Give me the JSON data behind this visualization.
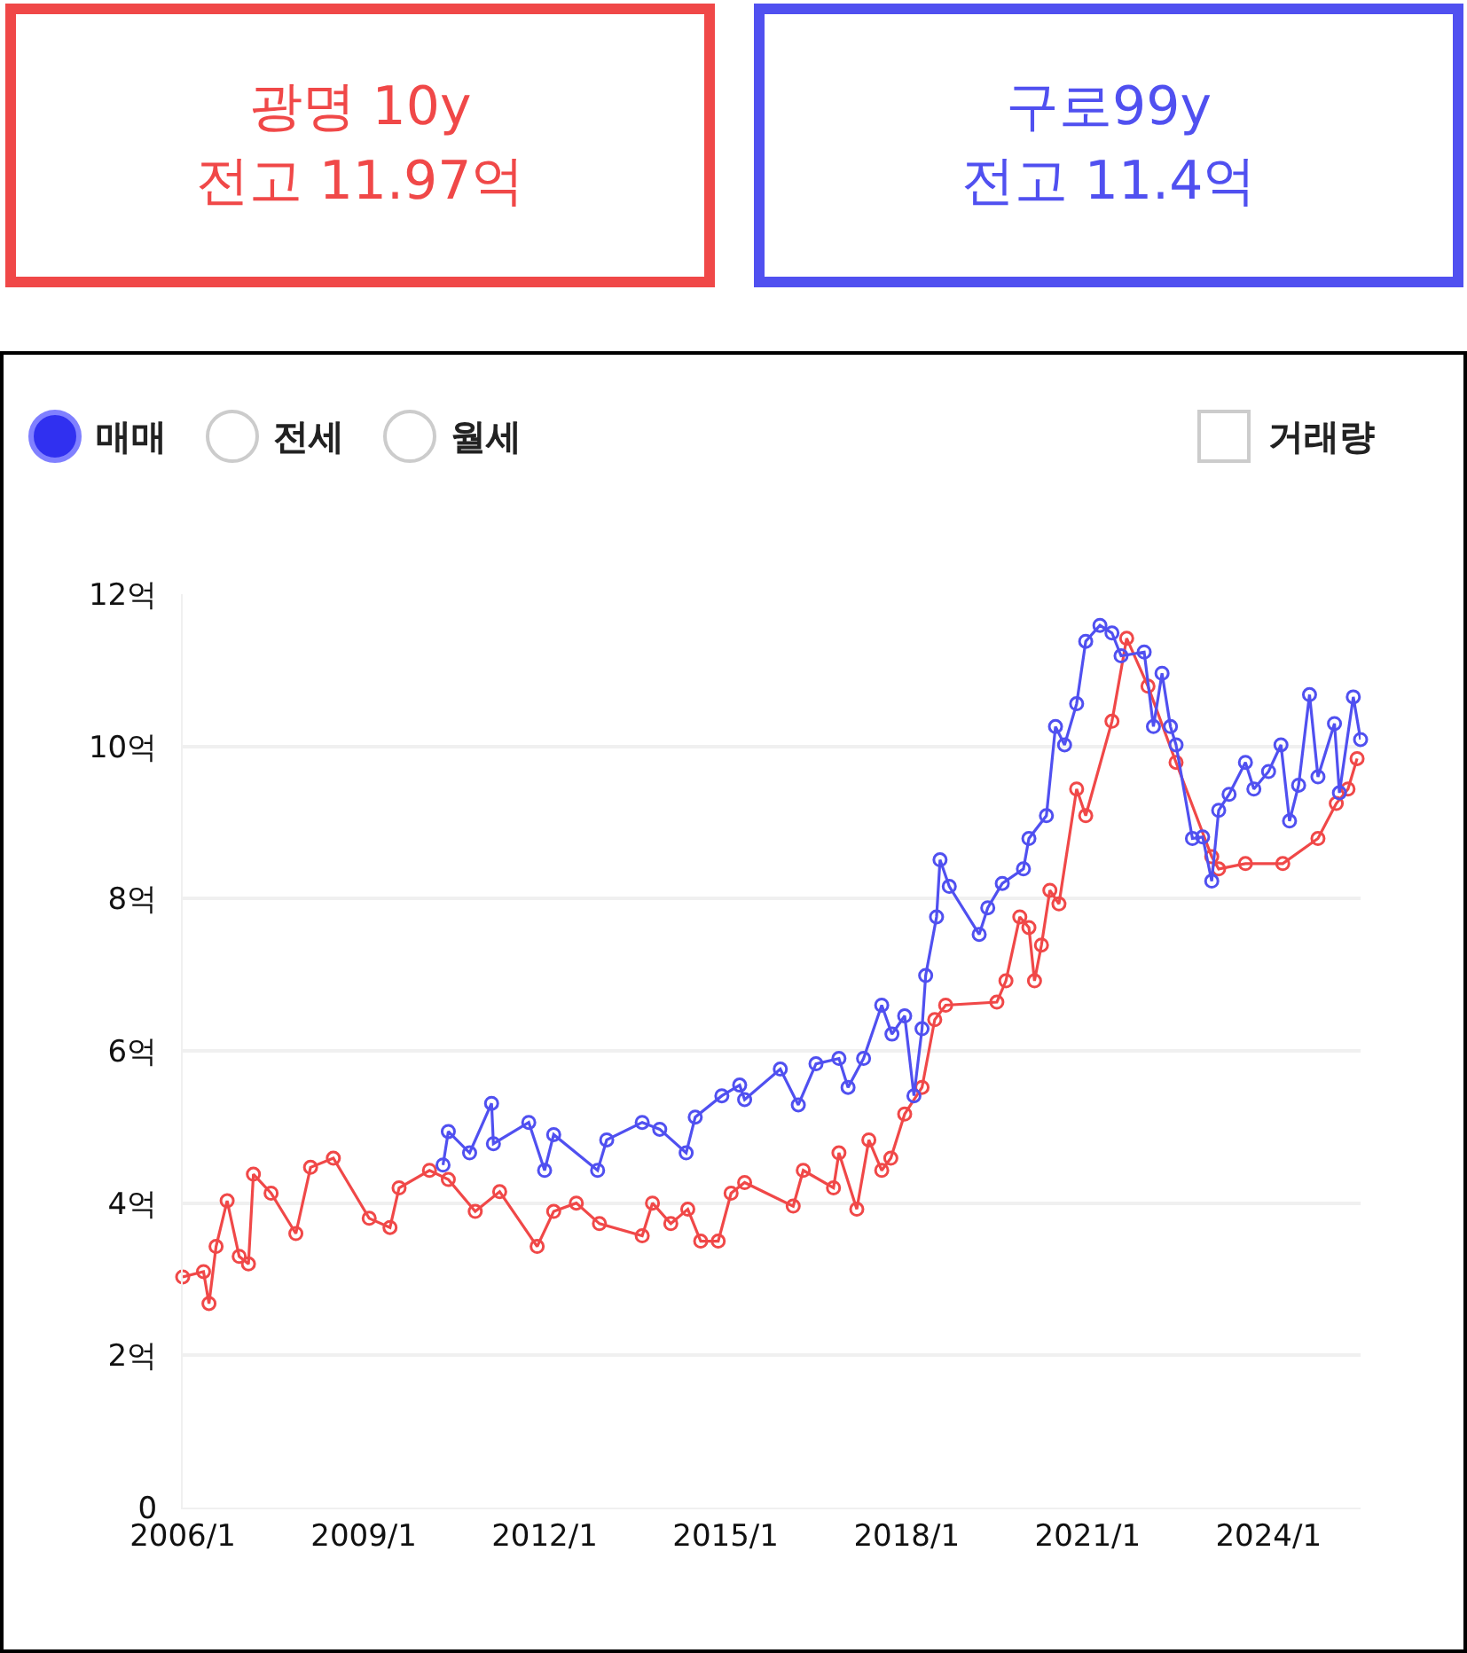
{
  "chart_data": {
    "type": "line",
    "annotations": [
      "전고 11.97억",
      "전고 11.4억",
      "매매",
      "전세",
      "월세",
      "거래량"
    ],
    "series": [
      {
        "name": "광명 10y",
        "color": "#f04848",
        "x": [
          "2006-01-01",
          "2006-05-07",
          "2006-06-09",
          "2006-07-22",
          "2006-09-27",
          "2006-12-09",
          "2007-02-03",
          "2007-03-05",
          "2007-06-20",
          "2007-11-17",
          "2008-02-14",
          "2008-07-01",
          "2009-02-03",
          "2009-06-09",
          "2009-08-03",
          "2010-02-03",
          "2010-05-28",
          "2010-11-07",
          "2011-04-04",
          "2011-11-17",
          "2012-02-25",
          "2012-07-11",
          "2012-11-28",
          "2013-08-14",
          "2013-10-15",
          "2014-02-03",
          "2014-05-17",
          "2014-08-03",
          "2014-11-17",
          "2015-02-03",
          "2015-04-26",
          "2016-02-14",
          "2016-04-15",
          "2016-10-15",
          "2016-11-17",
          "2017-03-05",
          "2017-05-17",
          "2017-08-03",
          "2017-09-27",
          "2017-12-20",
          "2018-04-04",
          "2018-06-20",
          "2018-08-25",
          "2019-07-01",
          "2019-08-25",
          "2019-11-17",
          "2020-01-11",
          "2020-02-14",
          "2020-03-27",
          "2020-05-17",
          "2020-07-11",
          "2020-10-26",
          "2020-12-20",
          "2021-05-28",
          "2021-08-25",
          "2022-01-01",
          "2022-06-20",
          "2023-01-22",
          "2023-03-05",
          "2023-08-14",
          "2024-03-27",
          "2024-10-26",
          "2025-02-14",
          "2025-04-26",
          "2025-06-20"
        ],
        "values": [
          3.03,
          3.1,
          2.68,
          3.43,
          4.03,
          3.3,
          3.2,
          4.38,
          4.13,
          3.6,
          4.47,
          4.59,
          3.8,
          3.68,
          4.2,
          4.43,
          4.31,
          3.89,
          4.15,
          3.43,
          3.89,
          4.0,
          3.73,
          3.57,
          4.0,
          3.73,
          3.92,
          3.5,
          3.5,
          4.13,
          4.27,
          3.96,
          4.43,
          4.2,
          4.66,
          3.92,
          4.83,
          4.43,
          4.59,
          5.17,
          5.52,
          6.41,
          6.6,
          6.64,
          6.92,
          7.76,
          7.62,
          6.92,
          7.39,
          8.11,
          7.93,
          9.44,
          9.09,
          10.33,
          11.42,
          10.79,
          9.79,
          8.55,
          8.39,
          8.46,
          8.46,
          8.79,
          9.25,
          9.44,
          9.84
        ]
      },
      {
        "name": "구로99y",
        "color": "#5050f0",
        "x": [
          "2010-04-26",
          "2010-05-28",
          "2010-10-04",
          "2011-02-14",
          "2011-02-25",
          "2011-09-27",
          "2012-01-01",
          "2012-02-25",
          "2012-11-17",
          "2013-01-11",
          "2013-08-14",
          "2013-11-28",
          "2014-05-07",
          "2014-07-01",
          "2014-12-09",
          "2015-03-27",
          "2015-04-26",
          "2015-11-28",
          "2016-03-16",
          "2016-07-01",
          "2016-11-17",
          "2017-01-11",
          "2017-04-15",
          "2017-08-03",
          "2017-10-04",
          "2017-12-20",
          "2018-02-14",
          "2018-04-04",
          "2018-04-26",
          "2018-07-01",
          "2018-07-22",
          "2018-09-16",
          "2019-03-16",
          "2019-05-07",
          "2019-08-03",
          "2019-12-09",
          "2020-01-11",
          "2020-04-26",
          "2020-06-20",
          "2020-08-14",
          "2020-10-26",
          "2020-12-20",
          "2021-03-16",
          "2021-05-28",
          "2021-07-22",
          "2021-12-09",
          "2022-02-03",
          "2022-03-27",
          "2022-05-17",
          "2022-06-20",
          "2022-09-27",
          "2022-11-28",
          "2023-01-22",
          "2023-03-05",
          "2023-05-07",
          "2023-08-14",
          "2023-10-04",
          "2024-01-01",
          "2024-03-16",
          "2024-05-07",
          "2024-07-01",
          "2024-09-05",
          "2024-10-26",
          "2025-02-03",
          "2025-03-05",
          "2025-05-28",
          "2025-07-11"
        ],
        "values": [
          4.5,
          4.94,
          4.66,
          5.31,
          4.78,
          5.06,
          4.43,
          4.9,
          4.43,
          4.83,
          5.06,
          4.97,
          4.66,
          5.13,
          5.41,
          5.55,
          5.36,
          5.76,
          5.29,
          5.83,
          5.9,
          5.52,
          5.9,
          6.6,
          6.22,
          6.46,
          5.41,
          6.29,
          6.99,
          7.76,
          8.51,
          8.16,
          7.53,
          7.88,
          8.2,
          8.39,
          8.79,
          9.09,
          10.26,
          10.02,
          10.56,
          11.38,
          11.59,
          11.49,
          11.19,
          11.24,
          10.26,
          10.96,
          10.26,
          10.02,
          8.79,
          8.81,
          8.23,
          9.16,
          9.37,
          9.79,
          9.44,
          9.67,
          10.02,
          9.02,
          9.49,
          10.68,
          9.6,
          10.3,
          9.39,
          10.65,
          10.09
        ]
      }
    ],
    "xlim": [
      "2006-01-01",
      "2025-07-11"
    ],
    "xticks": [
      {
        "value": "2006-01",
        "label": "2006/1"
      },
      {
        "value": "2009-01",
        "label": "2009/1"
      },
      {
        "value": "2012-01",
        "label": "2012/1"
      },
      {
        "value": "2015-01",
        "label": "2015/1"
      },
      {
        "value": "2018-01",
        "label": "2018/1"
      },
      {
        "value": "2021-01",
        "label": "2021/1"
      },
      {
        "value": "2024-01",
        "label": "2024/1"
      }
    ],
    "ylim": [
      0,
      12
    ],
    "yticks": [
      0,
      {
        "value": 2,
        "label": "2억"
      },
      {
        "value": 4,
        "label": "4억"
      },
      {
        "value": 6,
        "label": "6억"
      },
      {
        "value": 8,
        "label": "8억"
      },
      {
        "value": 10,
        "label": "10억"
      },
      {
        "value": 12,
        "label": "12억"
      }
    ],
    "grid": "y",
    "marker": "circle",
    "line_style": "solid",
    "legend": false
  }
}
